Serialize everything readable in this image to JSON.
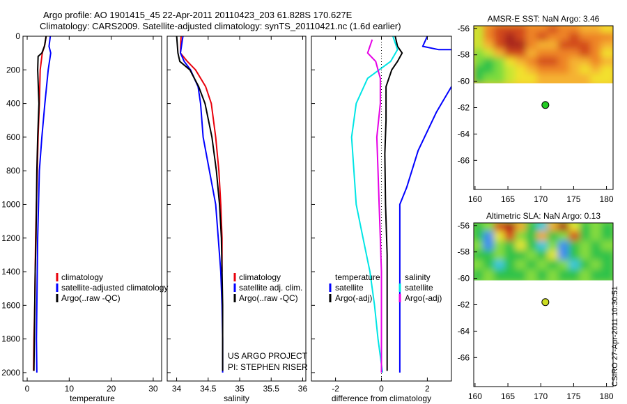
{
  "header": {
    "line1": "Argo profile: AO 1901415_45 22-Apr-2011 20110423_203 61.828S 170.627E",
    "line2": "Climatology: CARS2009. Satellite-adjusted climatology: synTS_20110421.nc (1.6d earlier)"
  },
  "credit": {
    "line1": "US ARGO PROJECT",
    "line2": "PI: STEPHEN RISER"
  },
  "stamp": "CSIRO 27-Apr-2011 10:30:51",
  "colors": {
    "climatology": "#e8000b",
    "satellite": "#0000ff",
    "argo": "#000000",
    "temp_diff": "#00e5e5",
    "sal_diff": "#e500e5"
  },
  "chart_data": [
    {
      "type": "line",
      "panel": "temperature",
      "xlabel": "temperature",
      "ylabel": "",
      "xlim": [
        -1,
        32
      ],
      "ylim": [
        2050,
        0
      ],
      "xticks": [
        0,
        10,
        20,
        30
      ],
      "yticks": [
        0,
        200,
        400,
        600,
        800,
        1000,
        1200,
        1400,
        1600,
        1800,
        2000
      ],
      "legend": [
        "climatology",
        "satellite-adjusted climatology",
        "Argo(..raw -QC)"
      ],
      "series": [
        {
          "name": "climatology",
          "color": "#e8000b",
          "points": [
            [
              4.5,
              0
            ],
            [
              4.2,
              50
            ],
            [
              3.6,
              100
            ],
            [
              3.1,
              200
            ],
            [
              2.9,
              400
            ],
            [
              2.6,
              600
            ],
            [
              2.4,
              800
            ],
            [
              2.2,
              1000
            ],
            [
              2.0,
              1200
            ],
            [
              1.9,
              1400
            ],
            [
              1.8,
              1600
            ],
            [
              1.6,
              1800
            ],
            [
              1.5,
              1990
            ]
          ]
        },
        {
          "name": "satellite-adjusted climatology",
          "color": "#0000ff",
          "points": [
            [
              5.5,
              0
            ],
            [
              5.2,
              60
            ],
            [
              5.6,
              100
            ],
            [
              5.0,
              200
            ],
            [
              4.2,
              400
            ],
            [
              3.5,
              600
            ],
            [
              2.9,
              800
            ],
            [
              2.7,
              1000
            ],
            [
              2.5,
              1200
            ],
            [
              2.4,
              1400
            ],
            [
              2.3,
              1600
            ],
            [
              2.2,
              1800
            ],
            [
              2.3,
              2000
            ]
          ]
        },
        {
          "name": "Argo(..raw -QC)",
          "color": "#000000",
          "points": [
            [
              4.5,
              0
            ],
            [
              4.1,
              60
            ],
            [
              3.5,
              100
            ],
            [
              2.6,
              120
            ],
            [
              2.5,
              200
            ],
            [
              2.8,
              400
            ],
            [
              2.5,
              600
            ],
            [
              2.3,
              800
            ],
            [
              2.2,
              1000
            ],
            [
              2.1,
              1200
            ],
            [
              1.9,
              1400
            ],
            [
              1.8,
              1600
            ],
            [
              1.7,
              1800
            ],
            [
              1.6,
              1990
            ]
          ]
        }
      ]
    },
    {
      "type": "line",
      "panel": "salinity",
      "xlabel": "salinity",
      "ylabel": "",
      "xlim": [
        33.85,
        36.05
      ],
      "ylim": [
        2050,
        0
      ],
      "xticks": [
        34,
        34.5,
        35,
        35.5,
        36
      ],
      "xtick_labels": [
        "34",
        "34.5",
        "35",
        "35.5",
        "36"
      ],
      "legend": [
        "climatology",
        "satellite adj. clim.",
        "Argo(..raw -QC)"
      ],
      "series": [
        {
          "name": "climatology",
          "color": "#e8000b",
          "points": [
            [
              34.07,
              0
            ],
            [
              34.06,
              100
            ],
            [
              34.17,
              150
            ],
            [
              34.3,
              200
            ],
            [
              34.46,
              300
            ],
            [
              34.55,
              400
            ],
            [
              34.62,
              600
            ],
            [
              34.67,
              800
            ],
            [
              34.7,
              1000
            ],
            [
              34.72,
              1200
            ],
            [
              34.72,
              1400
            ]
          ]
        },
        {
          "name": "satellite adj. clim.",
          "color": "#0000ff",
          "points": [
            [
              34.1,
              0
            ],
            [
              34.06,
              100
            ],
            [
              34.12,
              150
            ],
            [
              34.22,
              200
            ],
            [
              34.34,
              300
            ],
            [
              34.38,
              400
            ],
            [
              34.42,
              600
            ],
            [
              34.52,
              800
            ],
            [
              34.62,
              1000
            ],
            [
              34.66,
              1200
            ],
            [
              34.7,
              1400
            ],
            [
              34.72,
              1600
            ],
            [
              34.73,
              1800
            ],
            [
              34.73,
              2000
            ]
          ]
        },
        {
          "name": "Argo(..raw -QC)",
          "color": "#000000",
          "points": [
            [
              34.0,
              0
            ],
            [
              34.02,
              100
            ],
            [
              34.05,
              150
            ],
            [
              34.21,
              200
            ],
            [
              34.35,
              300
            ],
            [
              34.45,
              400
            ],
            [
              34.56,
              600
            ],
            [
              34.63,
              800
            ],
            [
              34.68,
              1000
            ],
            [
              34.71,
              1200
            ],
            [
              34.72,
              1400
            ],
            [
              34.73,
              1600
            ],
            [
              34.73,
              1800
            ],
            [
              34.73,
              1990
            ]
          ]
        }
      ]
    },
    {
      "type": "line",
      "panel": "difference",
      "xlabel": "difference from climatology",
      "ylabel": "",
      "xlim": [
        -3.05,
        3.05
      ],
      "ylim": [
        2050,
        0
      ],
      "xticks": [
        -2,
        0,
        2
      ],
      "legend_left_title": "temperature",
      "legend_right_title": "salinity",
      "legend_left": [
        "satellite",
        "Argo(-adj)"
      ],
      "legend_right": [
        "satellite",
        "Argo(-adj)"
      ],
      "series": [
        {
          "name": "temperature satellite",
          "color": "#0000ff",
          "points": [
            [
              2.0,
              0
            ],
            [
              1.8,
              60
            ],
            [
              2.5,
              80
            ],
            [
              3.05,
              80
            ]
          ]
        },
        {
          "name": "temperature satellite deep",
          "color": "#0000ff",
          "points": [
            [
              3.05,
              300
            ],
            [
              2.4,
              450
            ],
            [
              1.6,
              680
            ],
            [
              1.1,
              900
            ],
            [
              0.8,
              1000
            ],
            [
              0.8,
              1200
            ],
            [
              0.8,
              1400
            ],
            [
              0.8,
              1600
            ],
            [
              0.8,
              1800
            ],
            [
              0.8,
              2000
            ]
          ]
        },
        {
          "name": "temperature Argo(-adj)",
          "color": "#000000",
          "points": [
            [
              0.6,
              0
            ],
            [
              0.7,
              60
            ],
            [
              0.9,
              100
            ],
            [
              0.7,
              150
            ],
            [
              0.45,
              200
            ],
            [
              0.2,
              300
            ],
            [
              0.2,
              500
            ],
            [
              0.15,
              700
            ],
            [
              0.18,
              1000
            ],
            [
              0.25,
              1300
            ],
            [
              0.25,
              1600
            ],
            [
              0.25,
              1800
            ],
            [
              0.25,
              1990
            ]
          ]
        },
        {
          "name": "salinity satellite",
          "color": "#00e5e5",
          "points": [
            [
              0.5,
              0
            ],
            [
              0.7,
              80
            ],
            [
              0.4,
              150
            ],
            [
              -0.6,
              250
            ],
            [
              -1.1,
              400
            ],
            [
              -1.3,
              600
            ],
            [
              -1.2,
              800
            ],
            [
              -1.1,
              1000
            ],
            [
              -0.8,
              1200
            ],
            [
              -0.5,
              1400
            ],
            [
              -0.3,
              1600
            ],
            [
              -0.15,
              1800
            ],
            [
              0.05,
              2000
            ]
          ]
        },
        {
          "name": "salinity Argo(-adj)",
          "color": "#e500e5",
          "points": [
            [
              -0.4,
              20
            ],
            [
              -0.6,
              100
            ],
            [
              -0.25,
              150
            ],
            [
              -0.05,
              250
            ],
            [
              -0.05,
              400
            ],
            [
              -0.2,
              600
            ],
            [
              -0.15,
              800
            ],
            [
              -0.1,
              1000
            ],
            [
              -0.05,
              1200
            ],
            [
              0.0,
              1400
            ],
            [
              0.0,
              1800
            ],
            [
              0.0,
              2000
            ]
          ]
        }
      ]
    },
    {
      "type": "heatmap",
      "panel": "sst_map",
      "title": "AMSR-E SST: NaN Argo: 3.46",
      "xlim": [
        159.8,
        181
      ],
      "ylim": [
        -55.8,
        -68.2
      ],
      "xticks": [
        160,
        165,
        170,
        175,
        180
      ],
      "yticks": [
        -56,
        -58,
        -60,
        -62,
        -64,
        -66
      ],
      "data_extent": {
        "lon": [
          159.8,
          181
        ],
        "lat": [
          -55.8,
          -60.15
        ]
      },
      "argo_point": {
        "lon": 170.7,
        "lat": -61.8,
        "color": "#22cc22"
      },
      "palette": [
        "#2ec24a",
        "#7ddc3c",
        "#c8e632",
        "#f2e12e",
        "#f5b232",
        "#ee8428",
        "#d24a1e",
        "#a8261a"
      ],
      "grid": [
        [
          2,
          5,
          6,
          6,
          6,
          5,
          5,
          6,
          5,
          5,
          4,
          4,
          3
        ],
        [
          2,
          5,
          6,
          7,
          6,
          5,
          6,
          5,
          5,
          6,
          5,
          5,
          5
        ],
        [
          2,
          4,
          6,
          7,
          7,
          5,
          4,
          4,
          6,
          6,
          6,
          5,
          4
        ],
        [
          1,
          2,
          4,
          6,
          6,
          4,
          5,
          5,
          5,
          5,
          6,
          5,
          3
        ],
        [
          1,
          0,
          1,
          3,
          4,
          5,
          6,
          6,
          5,
          4,
          4,
          5,
          4
        ],
        [
          0,
          0,
          1,
          2,
          3,
          4,
          5,
          5,
          5,
          4,
          3,
          4,
          3
        ],
        [
          0,
          1,
          1,
          2,
          3,
          3,
          4,
          4,
          4,
          4,
          4,
          3,
          3
        ]
      ]
    },
    {
      "type": "heatmap",
      "panel": "sla_map",
      "title": "Altimetric SLA: NaN Argo: 0.13",
      "xlim": [
        159.8,
        181
      ],
      "ylim": [
        -55.8,
        -68.2
      ],
      "xticks": [
        160,
        165,
        170,
        175,
        180
      ],
      "yticks": [
        -56,
        -58,
        -60,
        -62,
        -64,
        -66
      ],
      "data_extent": {
        "lon": [
          159.8,
          181
        ],
        "lat": [
          -55.8,
          -60.15
        ]
      },
      "argo_point": {
        "lon": 170.7,
        "lat": -61.8,
        "color": "#ccdd22"
      },
      "palette": [
        "#1030c8",
        "#3a8cf0",
        "#3cc6e0",
        "#2ec24a",
        "#86dc3c",
        "#e6e632",
        "#f2a82e",
        "#d84a1e",
        "#b01818"
      ],
      "grid": [
        [
          3,
          4,
          7,
          8,
          6,
          3,
          2,
          6,
          8,
          5,
          3,
          4,
          3
        ],
        [
          3,
          1,
          5,
          7,
          4,
          3,
          6,
          3,
          4,
          7,
          3,
          4,
          3
        ],
        [
          4,
          1,
          4,
          3,
          5,
          3,
          2,
          4,
          1,
          3,
          4,
          3,
          4
        ],
        [
          3,
          3,
          4,
          3,
          3,
          4,
          3,
          5,
          1,
          3,
          4,
          3,
          3
        ],
        [
          4,
          3,
          2,
          3,
          4,
          3,
          4,
          3,
          4,
          2,
          3,
          4,
          3
        ],
        [
          3,
          4,
          3,
          3,
          3,
          4,
          3,
          4,
          3,
          3,
          4,
          3,
          3
        ]
      ]
    }
  ]
}
